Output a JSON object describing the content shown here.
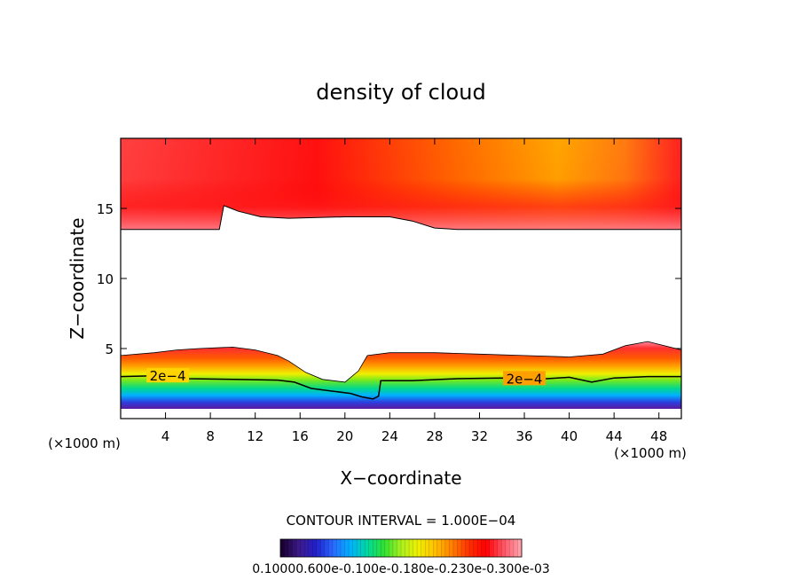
{
  "chart_data": {
    "type": "heatmap",
    "title": "density of cloud",
    "xlabel": "X−coordinate",
    "ylabel": "Z−coordinate",
    "x_unit_left": "(×1000 m)",
    "x_unit_right": "(×1000 m)",
    "xlim": [
      0,
      50
    ],
    "ylim": [
      0,
      20
    ],
    "x_ticks": [
      4,
      8,
      12,
      16,
      20,
      24,
      28,
      32,
      36,
      40,
      44,
      48
    ],
    "y_ticks": [
      5,
      10,
      15
    ],
    "contour_interval_label": "CONTOUR INTERVAL = 1.000E−04",
    "contour_labels": [
      {
        "text": "2e−4",
        "x": 4.2,
        "z": 2.9
      },
      {
        "text": "2e−4",
        "x": 36.0,
        "z": 2.7
      }
    ],
    "colorbar": {
      "min": 0.0001,
      "max": 0.003,
      "tick_text": "0.10000.600e-0.100e-0.180e-0.230e-0.300e-03",
      "colors": [
        "#1a0033",
        "#3d1a8a",
        "#2020cc",
        "#2a6aff",
        "#00b0ff",
        "#00d8a0",
        "#30e030",
        "#a8f020",
        "#f0f000",
        "#ffc000",
        "#ff8000",
        "#ff3000",
        "#ff0000",
        "#ff5060",
        "#ffa0a8"
      ]
    },
    "cloud_upper_layer": {
      "base_profile": [
        [
          0,
          13.5
        ],
        [
          8.8,
          13.5
        ],
        [
          9.2,
          15.2
        ],
        [
          10.5,
          14.8
        ],
        [
          12.5,
          14.4
        ],
        [
          15,
          14.3
        ],
        [
          20,
          14.4
        ],
        [
          24,
          14.4
        ],
        [
          26,
          14.1
        ],
        [
          28,
          13.6
        ],
        [
          30,
          13.5
        ],
        [
          34,
          13.5
        ],
        [
          40,
          13.5
        ],
        [
          50,
          13.5
        ]
      ],
      "top_z": 20
    },
    "cloud_lower_layer": {
      "top_profile": [
        [
          0,
          4.5
        ],
        [
          3,
          4.7
        ],
        [
          5,
          4.9
        ],
        [
          7,
          5.0
        ],
        [
          10,
          5.1
        ],
        [
          12,
          4.9
        ],
        [
          14,
          4.5
        ],
        [
          15,
          4.1
        ],
        [
          16.5,
          3.3
        ],
        [
          18,
          2.8
        ],
        [
          20,
          2.6
        ],
        [
          21.2,
          3.4
        ],
        [
          22,
          4.5
        ],
        [
          24,
          4.7
        ],
        [
          28,
          4.7
        ],
        [
          32,
          4.6
        ],
        [
          36,
          4.5
        ],
        [
          40,
          4.4
        ],
        [
          43,
          4.6
        ],
        [
          45,
          5.2
        ],
        [
          47,
          5.5
        ],
        [
          50,
          4.9
        ]
      ],
      "contour_2e4_profile": [
        [
          0,
          3.0
        ],
        [
          3,
          3.05
        ],
        [
          6,
          2.85
        ],
        [
          10,
          2.8
        ],
        [
          14,
          2.75
        ],
        [
          15.5,
          2.6
        ],
        [
          17,
          2.15
        ],
        [
          19,
          1.95
        ],
        [
          20.5,
          1.8
        ],
        [
          21.5,
          1.55
        ],
        [
          22.5,
          1.4
        ],
        [
          23,
          1.6
        ],
        [
          23.2,
          2.7
        ],
        [
          26,
          2.7
        ],
        [
          30,
          2.85
        ],
        [
          34,
          2.9
        ],
        [
          38,
          2.85
        ],
        [
          40,
          2.95
        ],
        [
          42,
          2.6
        ],
        [
          44,
          2.9
        ],
        [
          47,
          3.0
        ],
        [
          50,
          3.0
        ]
      ],
      "base_z": 0.7
    }
  }
}
